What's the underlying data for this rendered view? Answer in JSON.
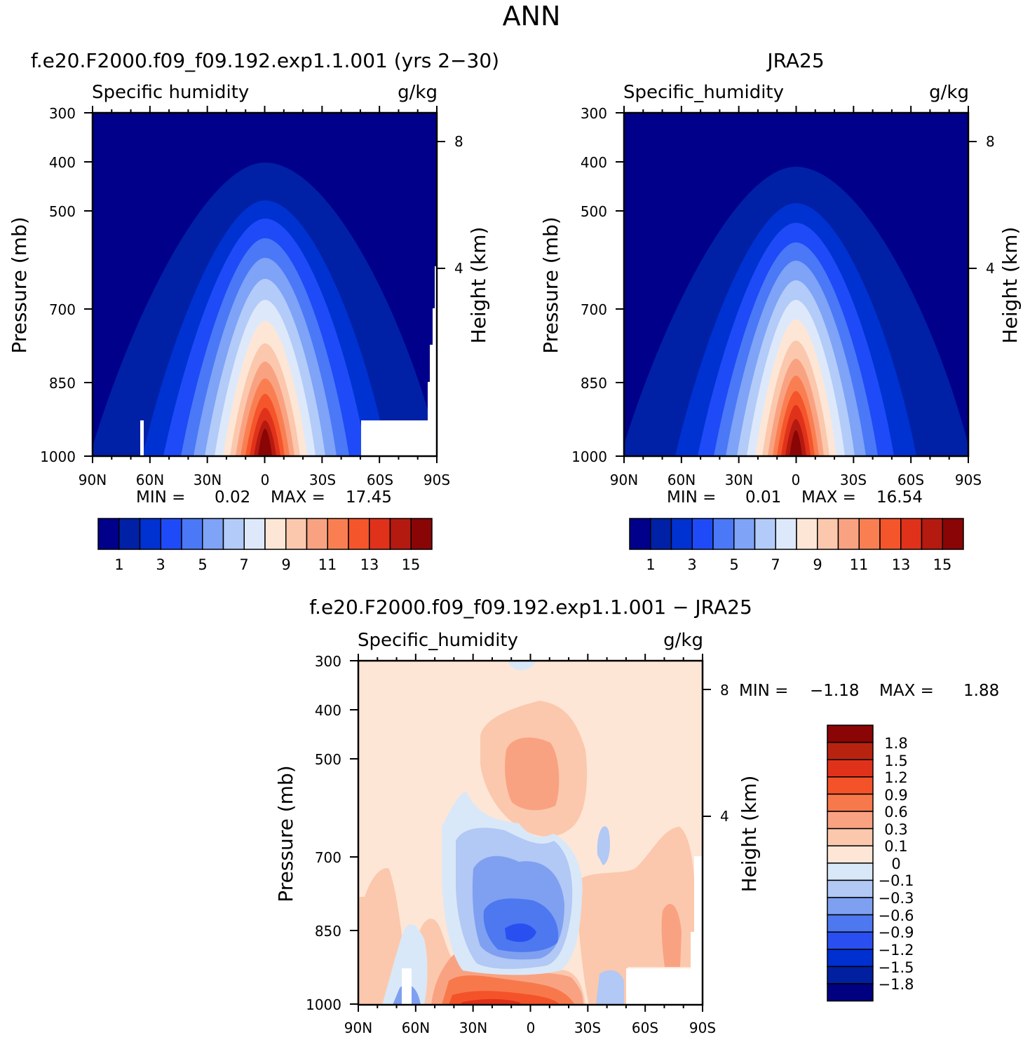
{
  "figure_title": "ANN",
  "colors": {
    "humidity_fill": [
      "#00008a",
      "#0021a6",
      "#0032d2",
      "#1e4bf7",
      "#4a78f7",
      "#7ea3f7",
      "#b3cbf8",
      "#dde9fa",
      "#fde6d6",
      "#fbc8ad",
      "#f9a282",
      "#f97f52",
      "#f5552b",
      "#e0321a",
      "#b41a10",
      "#8a0505"
    ],
    "diff_fill": [
      "#000080",
      "#0020a0",
      "#0030d0",
      "#2a4ff0",
      "#4d78f0",
      "#7fa0f0",
      "#b2c8f5",
      "#d9e8f8",
      "#fde6d6",
      "#fbc8ad",
      "#f9a282",
      "#f7794b",
      "#f4532a",
      "#e0321a",
      "#b82310",
      "#8a0505"
    ]
  },
  "chart_data": [
    {
      "type": "contour",
      "subtitle": "f.e20.F2000.f09_f09.192.exp1.1.001 (yrs 2−30)",
      "variable": "Specific humidity",
      "units": "g/kg",
      "ylabel": "Pressure (mb)",
      "ylabel_right": "Height (km)",
      "y_ticks": [
        "300",
        "400",
        "500",
        "700",
        "850",
        "1000"
      ],
      "y_ticks_right": [
        "8",
        "4"
      ],
      "x_ticks": [
        "90N",
        "60N",
        "30N",
        "0",
        "30S",
        "60S",
        "90S"
      ],
      "min_label": "MIN =",
      "min": "0.02",
      "max_label": "MAX =",
      "max": "17.45",
      "colorbar_labels": [
        "1",
        "3",
        "5",
        "7",
        "9",
        "11",
        "13",
        "15"
      ]
    },
    {
      "type": "contour",
      "subtitle": "JRA25",
      "variable": "Specific_humidity",
      "units": "g/kg",
      "ylabel": "Pressure (mb)",
      "ylabel_right": "Height (km)",
      "y_ticks": [
        "300",
        "400",
        "500",
        "700",
        "850",
        "1000"
      ],
      "y_ticks_right": [
        "8",
        "4"
      ],
      "x_ticks": [
        "90N",
        "60N",
        "30N",
        "0",
        "30S",
        "60S",
        "90S"
      ],
      "min_label": "MIN =",
      "min": "0.01",
      "max_label": "MAX =",
      "max": "16.54",
      "colorbar_labels": [
        "1",
        "3",
        "5",
        "7",
        "9",
        "11",
        "13",
        "15"
      ]
    },
    {
      "type": "contour",
      "subtitle": "f.e20.F2000.f09_f09.192.exp1.1.001 − JRA25",
      "variable": "Specific_humidity",
      "units": "g/kg",
      "ylabel": "Pressure (mb)",
      "ylabel_right": "Height (km)",
      "y_ticks": [
        "300",
        "400",
        "500",
        "700",
        "850",
        "1000"
      ],
      "y_ticks_right": [
        "8",
        "4"
      ],
      "x_ticks": [
        "90N",
        "60N",
        "30N",
        "0",
        "30S",
        "60S",
        "90S"
      ],
      "min_label": "MIN =",
      "min": "−1.18",
      "max_label": "MAX =",
      "max": "1.88",
      "colorbar_labels": [
        "1.8",
        "1.5",
        "1.2",
        "0.9",
        "0.6",
        "0.3",
        "0.1",
        "0",
        "−0.1",
        "−0.3",
        "−0.6",
        "−0.9",
        "−1.2",
        "−1.5",
        "−1.8"
      ]
    }
  ]
}
